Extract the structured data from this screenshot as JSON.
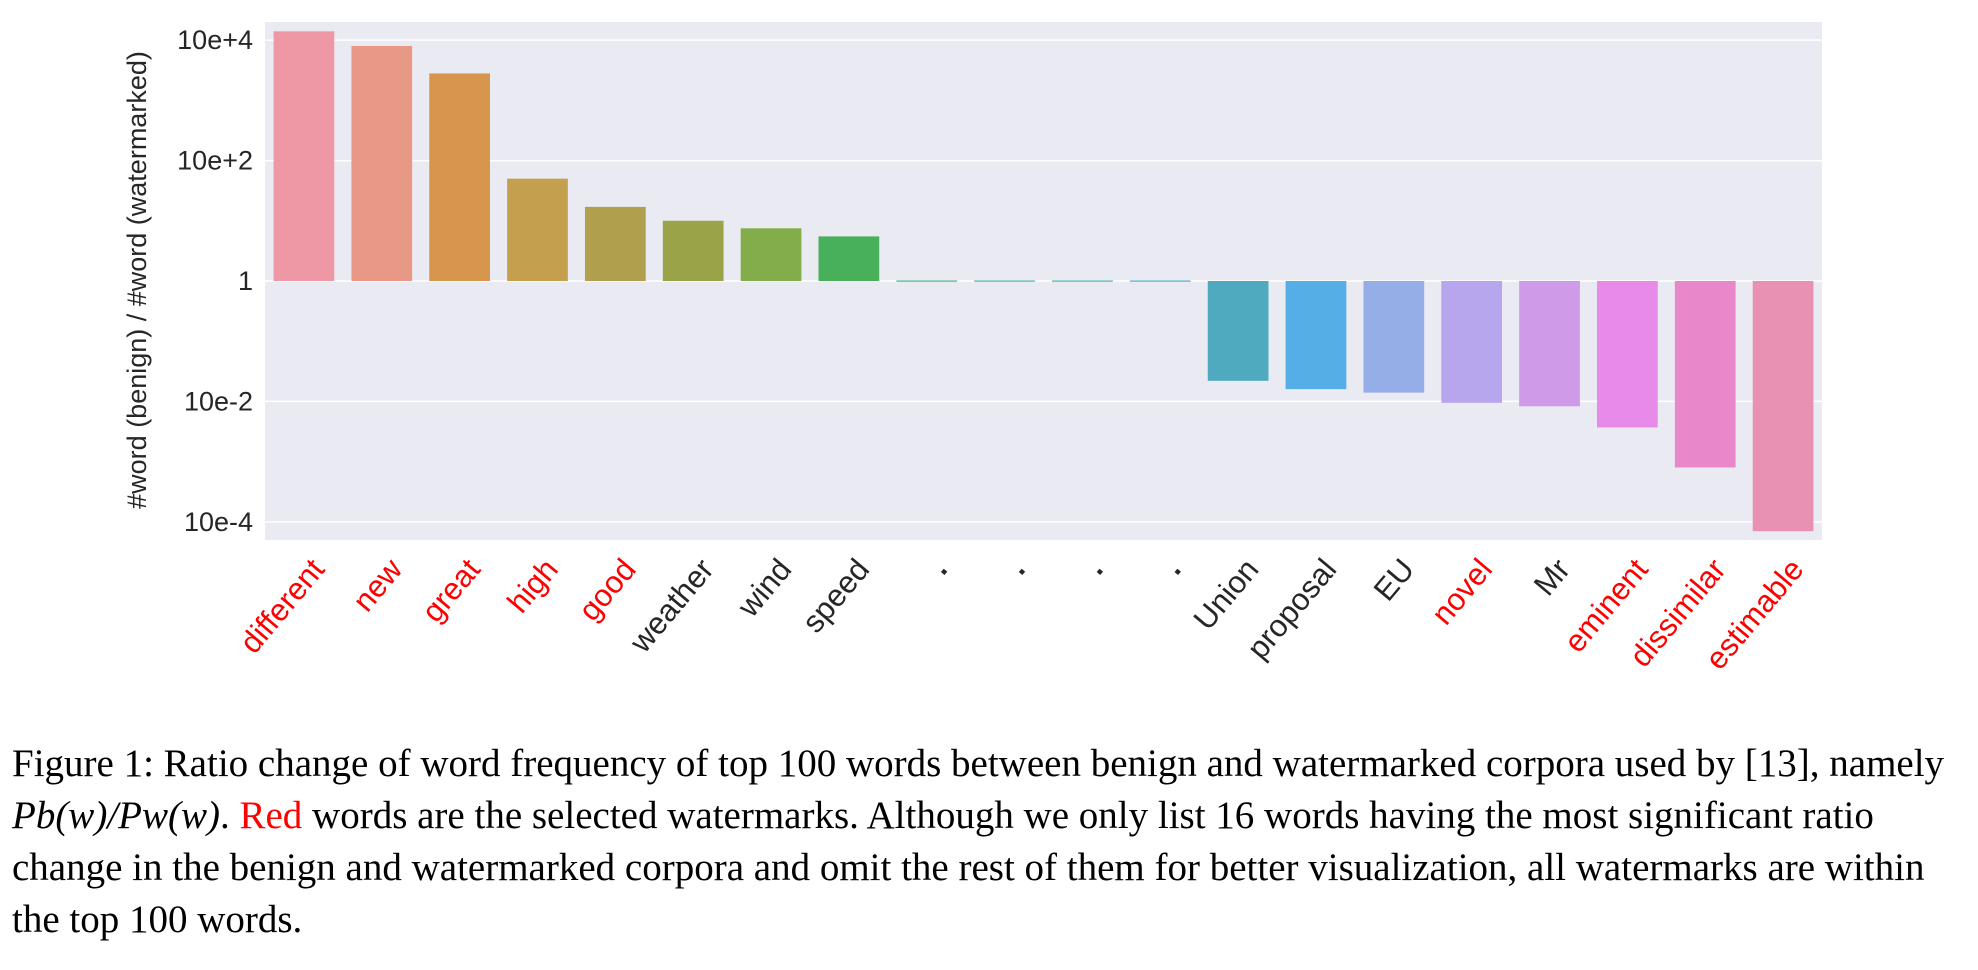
{
  "chart_data": {
    "type": "bar",
    "ylabel": "#word (benign) / #word (watermarked)",
    "yscale": "log",
    "ylim": [
      5e-05,
      20000
    ],
    "yticks": [
      {
        "value": 10000,
        "label": "10e+4"
      },
      {
        "value": 100,
        "label": "10e+2"
      },
      {
        "value": 1,
        "label": "1"
      },
      {
        "value": 0.01,
        "label": "10e-2"
      },
      {
        "value": 0.0001,
        "label": "10e-4"
      }
    ],
    "grid": true,
    "categories": [
      "different",
      "new",
      "great",
      "high",
      "good",
      "weather",
      "wind",
      "speed",
      ".",
      ".",
      ".",
      ".",
      "Union",
      "proposal",
      "EU",
      "novel",
      "Mr",
      "eminent",
      "dissimilar",
      "estimable"
    ],
    "values": [
      14000,
      8000,
      2800,
      50,
      17,
      10,
      7.5,
      5.5,
      1.02,
      1.02,
      1.02,
      1.02,
      0.022,
      0.016,
      0.014,
      0.0095,
      0.0083,
      0.0037,
      0.0008,
      7e-05
    ],
    "watermark": [
      true,
      true,
      true,
      true,
      true,
      false,
      false,
      false,
      false,
      false,
      false,
      false,
      false,
      false,
      false,
      true,
      false,
      true,
      true,
      true
    ],
    "colors": [
      "#ee97a5",
      "#e89884",
      "#d7954e",
      "#c49f4e",
      "#b09f4d",
      "#9aa347",
      "#82ad4a",
      "#48b05a",
      "#4bb18d",
      "#4bb0a5",
      "#4bafaf",
      "#4cadbc",
      "#50aabf",
      "#55aee6",
      "#95aee8",
      "#b7a5ed",
      "#cf9ae8",
      "#e78ae8",
      "#e888cb",
      "#e891b3"
    ],
    "label_color_watermark": "#ff0000",
    "label_color_normal": "#262626",
    "plot_bg": "#eaeaf2"
  },
  "caption": {
    "part1": "Figure 1: Ratio change of word frequency of top 100 words between benign and watermarked corpora used by [13], namely ",
    "math": "Pb(w)/Pw(w)",
    "part2": ". ",
    "highlight": "Red",
    "part3": " words are the selected watermarks. Although we only list 16 words having the most significant ratio change in the benign and watermarked corpora and omit the rest of them for better visualization, all watermarks are within the top 100 words."
  }
}
